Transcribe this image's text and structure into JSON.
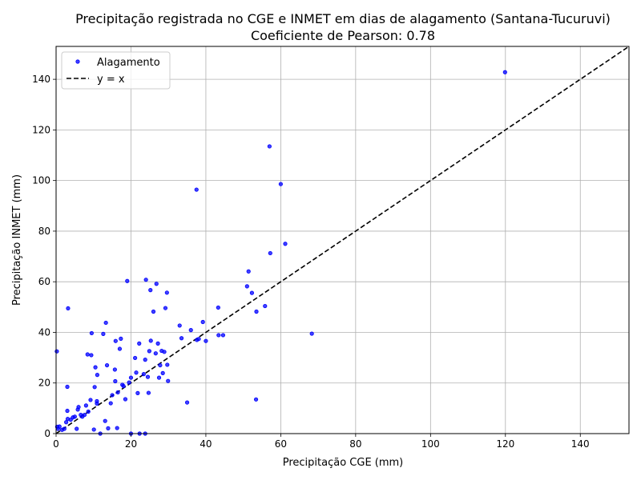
{
  "chart_data": {
    "type": "scatter",
    "title": "Precipitação registrada no CGE e INMET em dias de alagamento (Santana-Tucuruvi)",
    "subtitle": "Coeficiente de Pearson: 0.78",
    "xlabel": "Precipitação CGE (mm)",
    "ylabel": "Precipitação INMET (mm)",
    "xlim": [
      0,
      153
    ],
    "ylim": [
      0,
      153
    ],
    "xticks": [
      0,
      20,
      40,
      60,
      80,
      100,
      120,
      140
    ],
    "yticks": [
      0,
      20,
      40,
      60,
      80,
      100,
      120,
      140
    ],
    "grid": true,
    "legend_position": "top-left",
    "colors": {
      "points": "#0000ff",
      "line": "#000000",
      "grid": "#b0b0b0"
    },
    "series": [
      {
        "name": "Alagamento",
        "kind": "scatter",
        "points": [
          [
            0.2,
            32.5
          ],
          [
            0.3,
            2.7
          ],
          [
            0.5,
            1.9
          ],
          [
            0.9,
            2.8
          ],
          [
            1.6,
            1.5
          ],
          [
            2.2,
            1.9
          ],
          [
            2.7,
            4.5
          ],
          [
            3.1,
            5.8
          ],
          [
            3.0,
            9.0
          ],
          [
            3.0,
            18.5
          ],
          [
            3.2,
            49.5
          ],
          [
            3.9,
            5.5
          ],
          [
            4.5,
            6.4
          ],
          [
            5.0,
            6.7
          ],
          [
            5.5,
            1.9
          ],
          [
            5.8,
            9.5
          ],
          [
            6.0,
            10.5
          ],
          [
            6.6,
            7.4
          ],
          [
            7.0,
            6.7
          ],
          [
            7.6,
            7.4
          ],
          [
            8.0,
            11.1
          ],
          [
            8.6,
            8.7
          ],
          [
            8.4,
            31.3
          ],
          [
            9.2,
            13.3
          ],
          [
            9.4,
            31.0
          ],
          [
            9.5,
            39.7
          ],
          [
            10.1,
            1.6
          ],
          [
            10.3,
            18.4
          ],
          [
            10.5,
            26.2
          ],
          [
            10.9,
            12.8
          ],
          [
            11.0,
            23.2
          ],
          [
            10.9,
            11.9
          ],
          [
            11.8,
            0.0
          ],
          [
            12.6,
            39.4
          ],
          [
            13.1,
            5.0
          ],
          [
            13.3,
            43.8
          ],
          [
            13.6,
            27.0
          ],
          [
            13.9,
            2.1
          ],
          [
            14.6,
            12.0
          ],
          [
            15.0,
            15.2
          ],
          [
            15.7,
            25.3
          ],
          [
            15.8,
            20.7
          ],
          [
            15.9,
            36.6
          ],
          [
            16.3,
            2.2
          ],
          [
            16.5,
            16.3
          ],
          [
            17.0,
            33.5
          ],
          [
            17.3,
            37.5
          ],
          [
            17.7,
            19.3
          ],
          [
            18.0,
            18.8
          ],
          [
            18.5,
            13.6
          ],
          [
            19.0,
            60.3
          ],
          [
            19.5,
            20.2
          ],
          [
            20.0,
            0.0
          ],
          [
            20.0,
            22.1
          ],
          [
            21.1,
            29.9
          ],
          [
            21.4,
            24.1
          ],
          [
            21.8,
            16.0
          ],
          [
            22.2,
            35.6
          ],
          [
            22.3,
            0.0
          ],
          [
            23.4,
            23.5
          ],
          [
            23.8,
            0.0
          ],
          [
            23.8,
            29.2
          ],
          [
            24.0,
            60.8
          ],
          [
            24.5,
            22.4
          ],
          [
            24.7,
            16.1
          ],
          [
            24.9,
            32.6
          ],
          [
            25.2,
            56.7
          ],
          [
            25.3,
            36.7
          ],
          [
            26.0,
            48.2
          ],
          [
            26.6,
            31.7
          ],
          [
            26.8,
            59.2
          ],
          [
            27.2,
            35.6
          ],
          [
            27.5,
            22.1
          ],
          [
            27.8,
            27.0
          ],
          [
            28.2,
            32.7
          ],
          [
            28.5,
            23.9
          ],
          [
            28.9,
            32.3
          ],
          [
            29.2,
            49.6
          ],
          [
            29.6,
            55.7
          ],
          [
            29.7,
            27.2
          ],
          [
            29.9,
            20.8
          ],
          [
            33.0,
            42.7
          ],
          [
            33.5,
            37.7
          ],
          [
            35.0,
            12.3
          ],
          [
            36.0,
            40.9
          ],
          [
            37.5,
            96.4
          ],
          [
            37.6,
            37.0
          ],
          [
            38.1,
            37.4
          ],
          [
            39.2,
            44.1
          ],
          [
            40.0,
            36.6
          ],
          [
            43.3,
            49.8
          ],
          [
            43.4,
            38.9
          ],
          [
            44.6,
            38.9
          ],
          [
            51.0,
            58.2
          ],
          [
            51.4,
            64.1
          ],
          [
            52.3,
            55.6
          ],
          [
            53.4,
            13.5
          ],
          [
            53.5,
            48.2
          ],
          [
            55.8,
            50.4
          ],
          [
            57.2,
            71.3
          ],
          [
            57.0,
            113.5
          ],
          [
            60.0,
            98.6
          ],
          [
            61.2,
            75.0
          ],
          [
            68.3,
            39.5
          ],
          [
            119.9,
            142.8
          ]
        ]
      },
      {
        "name": "y = x",
        "kind": "line",
        "dashed": true,
        "points": [
          [
            0,
            0
          ],
          [
            153,
            153
          ]
        ]
      }
    ]
  }
}
